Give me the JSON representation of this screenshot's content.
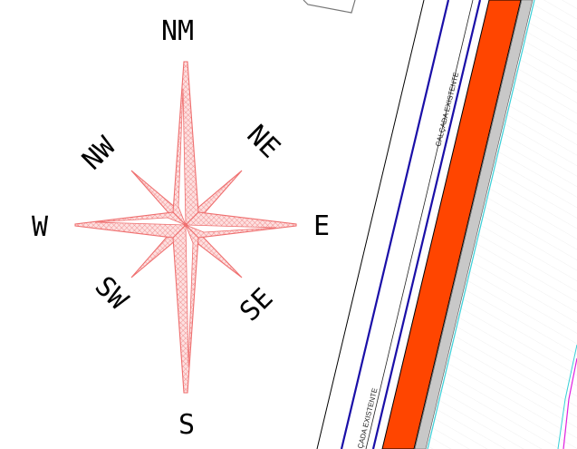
{
  "compass": {
    "north": "NM",
    "northeast": "NE",
    "east": "E",
    "southeast": "SE",
    "south": "S",
    "southwest": "SW",
    "west": "W",
    "northwest": "NW"
  },
  "road_labels": {
    "upper_sidewalk": "CALÇADA EXISTENTE",
    "lower_sidewalk": "ÇADA EXISTENTE"
  },
  "colors": {
    "rose_fill": "#f7b0b0",
    "rose_stroke": "#ef6f6f",
    "road_band": "#ff4500",
    "boundary_blue": "#1a0fa8",
    "edge_cyan": "#39d0d8",
    "kerb_gray": "#c8c8c8",
    "parcel_magenta": "#e020e0"
  }
}
